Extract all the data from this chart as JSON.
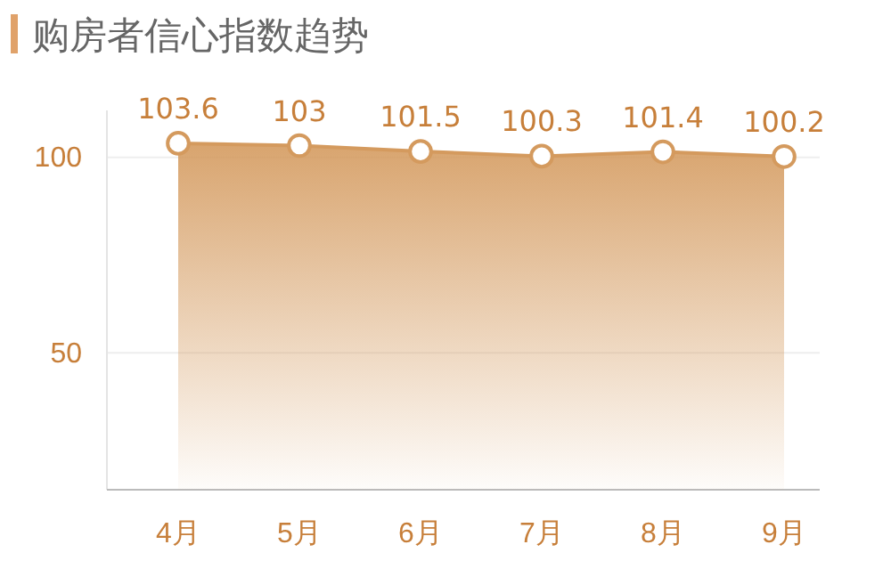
{
  "chart_data": {
    "type": "area",
    "title": "购房者信心指数趋势",
    "categories": [
      "4月",
      "5月",
      "6月",
      "7月",
      "8月",
      "9月"
    ],
    "series": [
      {
        "color": "#d49a5e",
        "values": [
          103.6,
          103,
          101.5,
          100.3,
          101.4,
          100.2
        ]
      }
    ],
    "ylim": [
      15,
      112
    ],
    "yticks": [
      50,
      100
    ],
    "grid": "y",
    "marker": "circle",
    "data_labels": true
  }
}
